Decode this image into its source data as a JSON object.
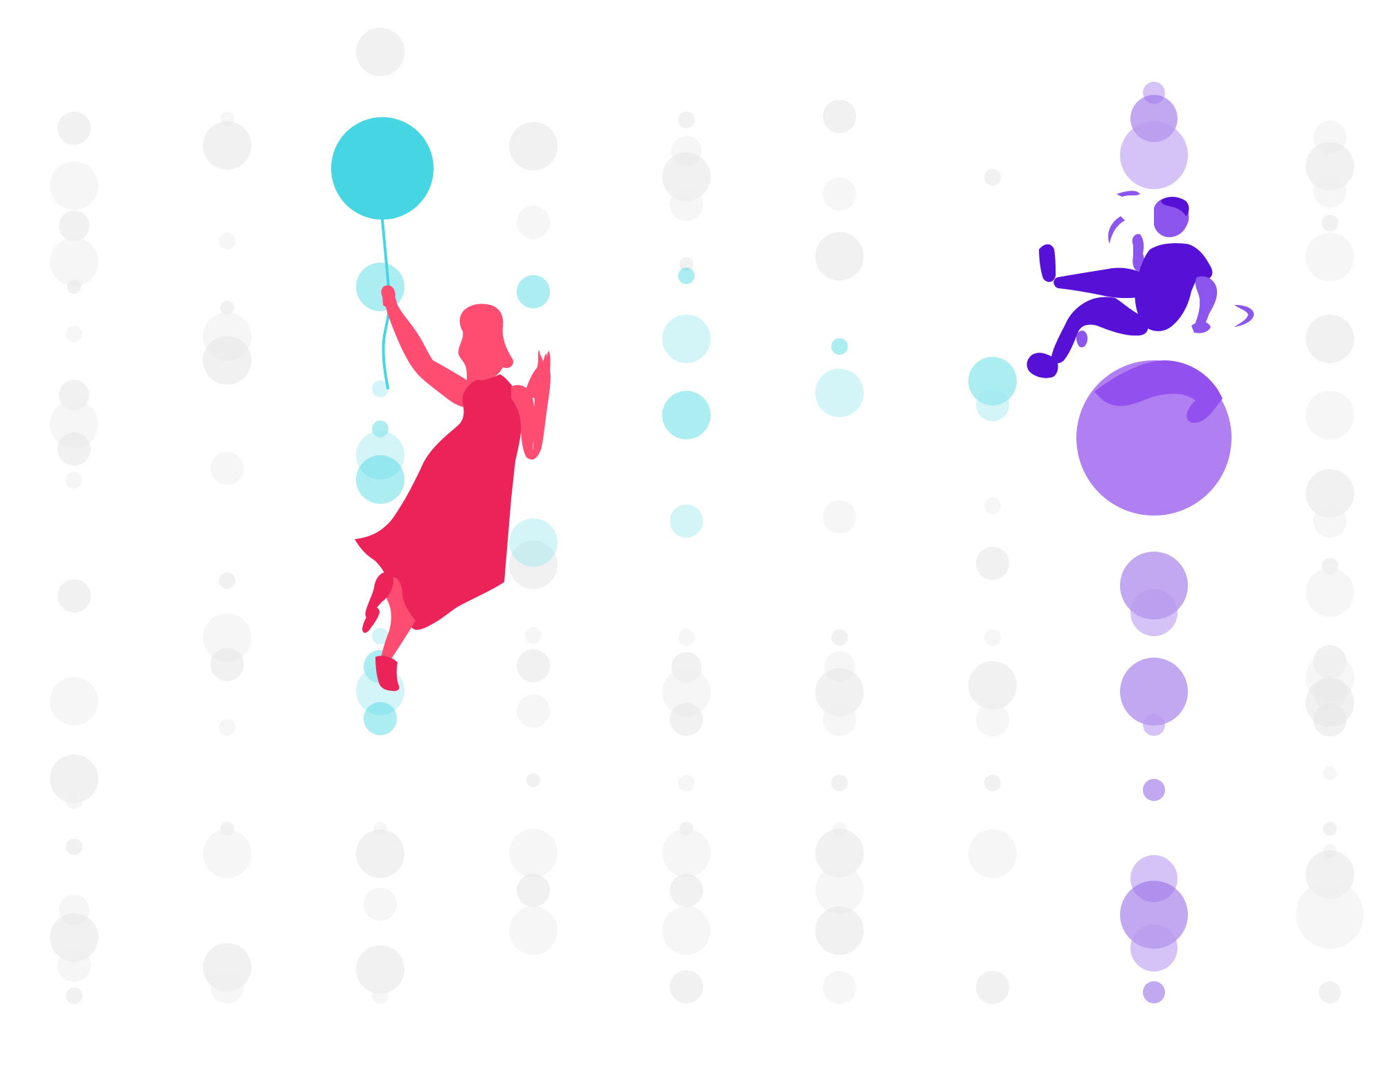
{
  "illustration": {
    "background_color": "#ffffff",
    "colors": {
      "bubble_grey": "#e6e6e6",
      "bubble_grey_light": "#efefef",
      "bubble_cyan": "#46d6e3",
      "bubble_cyan_light": "#9fe8ef",
      "bubble_purple": "#9a6ee8",
      "bubble_purple_light": "#b99af0",
      "balloon_cyan": "#46d6e3",
      "woman_dress": "#ec2359",
      "woman_skin": "#ff4d72",
      "man_body": "#5610d6",
      "man_skin": "#8b55ee",
      "man_ball": "#b07ff2",
      "man_ball_shade": "#9250ee"
    },
    "figures": {
      "woman": {
        "icon": "woman-holding-balloon-icon"
      },
      "man": {
        "icon": "man-on-ball-icon"
      }
    }
  }
}
